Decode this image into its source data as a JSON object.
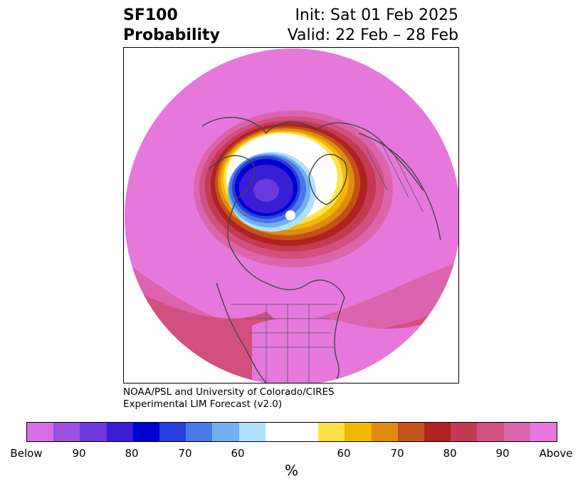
{
  "header": {
    "title_line1": "SF100",
    "title_line2": "Probability",
    "init": "Init: Sat 01 Feb 2025",
    "valid": "Valid: 22 Feb – 28 Feb"
  },
  "credit": {
    "line1": "NOAA/PSL and University of Colorado/CIRES",
    "line2": "Experimental LIM Forecast (v2.0)"
  },
  "colorbar": {
    "unit": "%",
    "tick_labels": [
      "Below",
      "90",
      "80",
      "70",
      "60",
      "60",
      "70",
      "80",
      "90",
      "Above"
    ],
    "colors": [
      "#d86ee6",
      "#9b50e0",
      "#6b38dc",
      "#3a1ed6",
      "#0000d0",
      "#2540dc",
      "#4a78e8",
      "#72b0f0",
      "#aee0fc",
      "#ffffff",
      "#ffffff",
      "#ffe24a",
      "#f2b800",
      "#e08c10",
      "#c45216",
      "#b02222",
      "#c43a52",
      "#d25080",
      "#dc64ac",
      "#e678dc"
    ]
  },
  "map": {
    "projection": "north polar stereographic",
    "background_color": "#e678dc"
  }
}
